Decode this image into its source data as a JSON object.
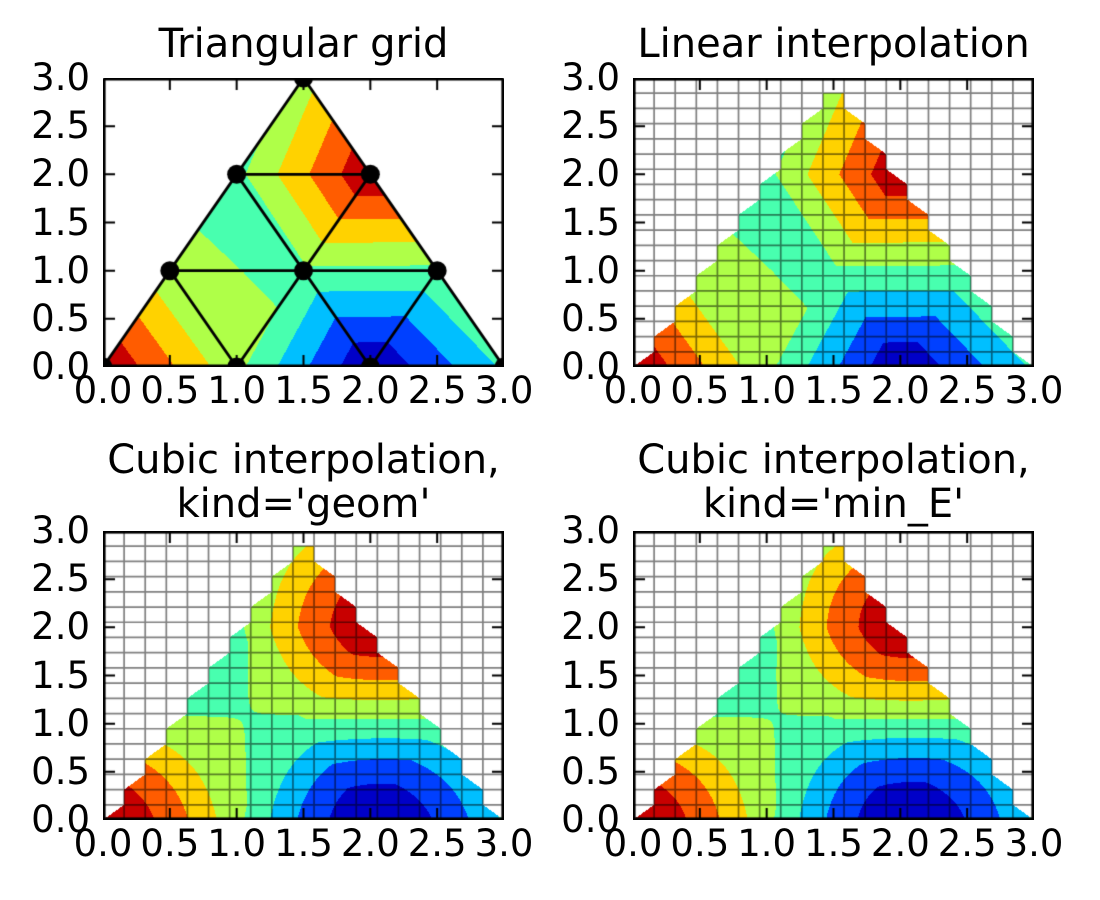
{
  "figure": {
    "background": "#ffffff"
  },
  "subplots": [
    {
      "id": "triangular-grid",
      "interp": "none",
      "title_line1": "Triangular grid",
      "title_line2": ""
    },
    {
      "id": "linear",
      "interp": "linear",
      "title_line1": "Linear interpolation",
      "title_line2": ""
    },
    {
      "id": "cubic-geom",
      "interp": "cubic_geom",
      "title_line1": "Cubic interpolation,",
      "title_line2": "kind='geom'"
    },
    {
      "id": "cubic-min-e",
      "interp": "cubic_min_E",
      "title_line1": "Cubic interpolation,",
      "title_line2": "kind='min_E'"
    }
  ],
  "chart_data": {
    "type": "tricontour-filled",
    "xlim": [
      0,
      3
    ],
    "ylim": [
      0,
      3
    ],
    "xtick_values": [
      0,
      0.5,
      1,
      1.5,
      2,
      2.5,
      3
    ],
    "xtick_labels": [
      "0.0",
      "0.5",
      "1.0",
      "1.5",
      "2.0",
      "2.5",
      "3.0"
    ],
    "ytick_values": [
      0,
      0.5,
      1,
      1.5,
      2,
      2.5,
      3
    ],
    "ytick_labels": [
      "0.0",
      "0.5",
      "1.0",
      "1.5",
      "2.0",
      "2.5",
      "3.0"
    ],
    "points_x": [
      0.0,
      1.0,
      2.0,
      3.0,
      0.5,
      1.5,
      2.5,
      1.0,
      2.0,
      1.5
    ],
    "points_y": [
      0.0,
      0.0,
      0.0,
      0.0,
      1.0,
      1.0,
      1.0,
      2.0,
      2.0,
      3.0
    ],
    "points_z": [
      1.0,
      0.070737,
      -0.989992,
      -0.210796,
      0.051757,
      -0.044435,
      -0.058044,
      -0.070029,
      0.980085,
      0.132417
    ],
    "triangles": [
      [
        0,
        1,
        4
      ],
      [
        1,
        2,
        5
      ],
      [
        2,
        3,
        6
      ],
      [
        1,
        5,
        4
      ],
      [
        2,
        6,
        5
      ],
      [
        4,
        5,
        7
      ],
      [
        5,
        6,
        8
      ],
      [
        5,
        8,
        7
      ],
      [
        7,
        8,
        9
      ]
    ],
    "levels": [
      -1.0,
      -0.75,
      -0.5,
      -0.25,
      0.0,
      0.25,
      0.5,
      0.75,
      1.0
    ],
    "band_colors": [
      "#0000c8",
      "#0040ff",
      "#00bfff",
      "#48ffaf",
      "#afff48",
      "#ffd200",
      "#ff5c00",
      "#c80000"
    ],
    "refine_grid_n": 20,
    "mesh_line_color": "#000000",
    "mesh_line_alpha": 0.5,
    "node_marker_color": "#000000",
    "triangulation_edge_color": "#000000",
    "legend": "none",
    "grid": "20x20 overlay mesh on interpolated panels"
  }
}
